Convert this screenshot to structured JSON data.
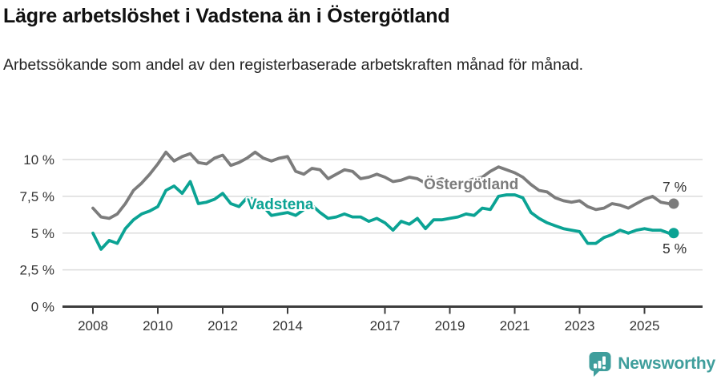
{
  "header": {
    "title": "Lägre arbetslöshet i Vadstena än i Östergötland",
    "subtitle": "Arbetssökande som andel av den registerbaserade arbetskraften månad för månad."
  },
  "chart_data": {
    "type": "line",
    "unit": "%",
    "xlabel": "",
    "ylabel": "",
    "ylim": [
      0,
      10.8
    ],
    "grid": "horizontal",
    "x": [
      2008,
      2008.25,
      2008.5,
      2008.75,
      2009,
      2009.25,
      2009.5,
      2009.75,
      2010,
      2010.25,
      2010.5,
      2010.75,
      2011,
      2011.25,
      2011.5,
      2011.75,
      2012,
      2012.25,
      2012.5,
      2012.75,
      2013,
      2013.25,
      2013.5,
      2013.75,
      2014,
      2014.25,
      2014.5,
      2014.75,
      2015,
      2015.25,
      2015.5,
      2015.75,
      2016,
      2016.25,
      2016.5,
      2016.75,
      2017,
      2017.25,
      2017.5,
      2017.75,
      2018,
      2018.25,
      2018.5,
      2018.75,
      2019,
      2019.25,
      2019.5,
      2019.75,
      2020,
      2020.25,
      2020.5,
      2020.75,
      2021,
      2021.25,
      2021.5,
      2021.75,
      2022,
      2022.25,
      2022.5,
      2022.75,
      2023,
      2023.25,
      2023.5,
      2023.75,
      2024,
      2024.25,
      2024.5,
      2024.75,
      2025,
      2025.25,
      2025.5,
      2025.75,
      2025.9
    ],
    "series": [
      {
        "name": "Östergötland",
        "color": "#7c7c7c",
        "end_label": "7 %",
        "end_value": 7,
        "values": [
          6.7,
          6.1,
          6.0,
          6.3,
          7.0,
          7.9,
          8.4,
          9.0,
          9.7,
          10.5,
          9.9,
          10.2,
          10.4,
          9.8,
          9.7,
          10.1,
          10.3,
          9.6,
          9.8,
          10.1,
          10.5,
          10.1,
          9.9,
          10.1,
          10.2,
          9.2,
          9.0,
          9.4,
          9.3,
          8.7,
          9.0,
          9.3,
          9.2,
          8.7,
          8.8,
          9.0,
          8.8,
          8.5,
          8.6,
          8.8,
          8.7,
          8.4,
          8.5,
          8.7,
          8.5,
          8.4,
          8.5,
          8.7,
          8.8,
          9.2,
          9.5,
          9.3,
          9.1,
          8.8,
          8.3,
          7.9,
          7.8,
          7.4,
          7.2,
          7.1,
          7.2,
          6.8,
          6.6,
          6.7,
          7.0,
          6.9,
          6.7,
          7.0,
          7.3,
          7.5,
          7.1,
          7.0,
          7.0
        ]
      },
      {
        "name": "Vadstena",
        "color": "#0ba394",
        "end_label": "5 %",
        "end_value": 5,
        "values": [
          5.0,
          3.9,
          4.5,
          4.3,
          5.3,
          5.9,
          6.3,
          6.5,
          6.8,
          7.9,
          8.2,
          7.7,
          8.5,
          7.0,
          7.1,
          7.3,
          7.7,
          7.0,
          6.8,
          7.4,
          7.3,
          6.8,
          6.2,
          6.3,
          6.4,
          6.2,
          6.6,
          6.9,
          6.4,
          6.0,
          6.1,
          6.3,
          6.1,
          6.1,
          5.8,
          6.0,
          5.7,
          5.2,
          5.8,
          5.6,
          6.0,
          5.3,
          5.9,
          5.9,
          6.0,
          6.1,
          6.3,
          6.2,
          6.7,
          6.6,
          7.5,
          7.6,
          7.6,
          7.4,
          6.4,
          6.0,
          5.7,
          5.5,
          5.3,
          5.2,
          5.1,
          4.3,
          4.3,
          4.7,
          4.9,
          5.2,
          5.0,
          5.2,
          5.3,
          5.2,
          5.2,
          5.0,
          5.0
        ]
      }
    ],
    "x_ticks": [
      {
        "year": 2008,
        "label": "2008"
      },
      {
        "year": 2010,
        "label": "2010"
      },
      {
        "year": 2012,
        "label": "2012"
      },
      {
        "year": 2014,
        "label": "2014"
      },
      {
        "year": 2017,
        "label": "2017"
      },
      {
        "year": 2019,
        "label": "2019"
      },
      {
        "year": 2021,
        "label": "2021"
      },
      {
        "year": 2023,
        "label": "2023"
      },
      {
        "year": 2025,
        "label": "2025"
      }
    ],
    "y_ticks": [
      {
        "value": 0,
        "label": "0 %"
      },
      {
        "value": 2.5,
        "label": "2,5 %"
      },
      {
        "value": 5,
        "label": "5 %"
      },
      {
        "value": 7.5,
        "label": "7,5 %"
      },
      {
        "value": 10,
        "label": "10 %"
      }
    ],
    "colors": {
      "grid": "#dcdcdc",
      "axis": "#3d3d3d",
      "tick_text": "#333333"
    }
  },
  "footer": {
    "brand": "Newsworthy",
    "brand_color": "#3f9e9c"
  }
}
